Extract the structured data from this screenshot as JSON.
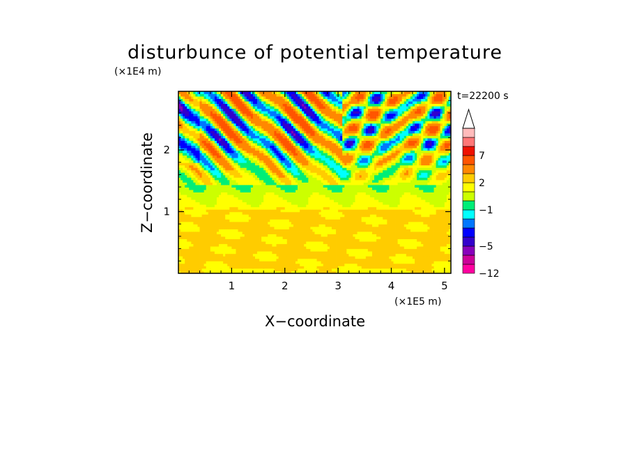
{
  "chart_data": {
    "type": "heatmap",
    "title": "disturbunce of potential temperature",
    "xlabel": "X−coordinate",
    "ylabel": "Z−coordinate",
    "x_unit": "(×1E5 m)",
    "y_unit": "(×1E4 m)",
    "time_label": "t=22200 s",
    "xlim": [
      0,
      5.12
    ],
    "ylim": [
      0,
      2.95
    ],
    "xticks": [
      1,
      2,
      3,
      4,
      5
    ],
    "yticks": [
      1,
      2
    ],
    "xtick_labels": [
      "1",
      "2",
      "3",
      "4",
      "5"
    ],
    "ytick_labels": [
      "1",
      "2"
    ],
    "colorbar": {
      "levels": [
        -12,
        -9,
        -7,
        -5,
        -4,
        -3,
        -2,
        -1,
        0,
        1,
        2,
        3,
        5,
        7,
        9,
        11
      ],
      "colors": [
        "#ff00a0",
        "#cc0099",
        "#8800bb",
        "#3300cc",
        "#0000ff",
        "#0077ff",
        "#00ffff",
        "#00ee77",
        "#ccff00",
        "#ffff00",
        "#ffcc00",
        "#ff8800",
        "#ff5500",
        "#ee1100",
        "#ff7777",
        "#ffbbbb"
      ],
      "tick_labels": [
        "−12",
        "−5",
        "−1",
        "2",
        "7"
      ],
      "extend": "max"
    },
    "description_note": ""
  }
}
